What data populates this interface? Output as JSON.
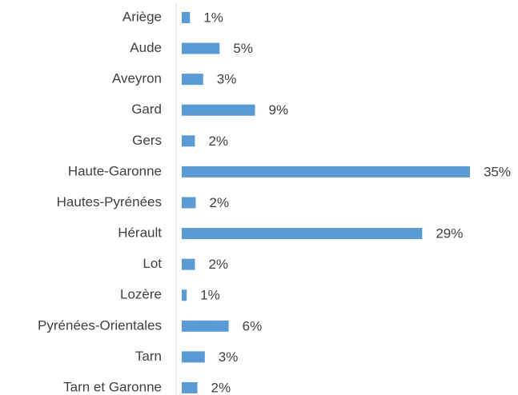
{
  "chart_data": {
    "type": "barh",
    "categories": [
      "Ariège",
      "Aude",
      "Aveyron",
      "Gard",
      "Gers",
      "Haute-Garonne",
      "Hautes-Pyrénées",
      "Hérault",
      "Lot",
      "Lozère",
      "Pyrénées-Orientales",
      "Tarn",
      "Tarn et Garonne"
    ],
    "values": [
      1.0,
      4.6,
      2.6,
      8.9,
      1.6,
      35,
      1.7,
      29.2,
      1.6,
      0.6,
      5.7,
      2.8,
      1.9
    ],
    "value_labels": [
      "1%",
      "5%",
      "3%",
      "9%",
      "2%",
      "35%",
      "2%",
      "29%",
      "2%",
      "1%",
      "6%",
      "3%",
      "2%"
    ],
    "color": "#5b9bd5",
    "xlim": [
      0,
      35
    ]
  }
}
